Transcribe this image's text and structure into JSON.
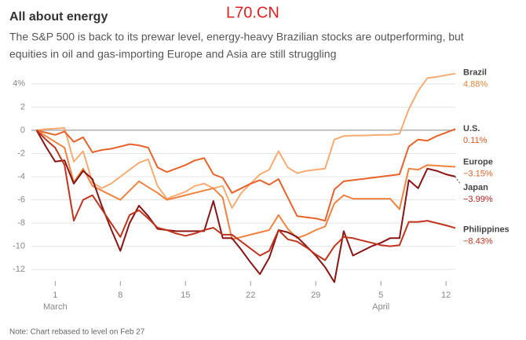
{
  "chart_data": {
    "type": "line",
    "title": "All about energy",
    "watermark": "L70.CN",
    "subtitle": [
      "The S&P 500 is back to its prewar level, energy-heavy Brazilian stocks are outperforming, but",
      "equities in oil and gas-importing Europe and Asia are still struggling"
    ],
    "note": "Note: Chart rebased to level on Feb 27",
    "x": [
      -1,
      0,
      1,
      2,
      3,
      4,
      5,
      6,
      7,
      8,
      9,
      10,
      11,
      12,
      13,
      14,
      15,
      16,
      17,
      18,
      19,
      20,
      21,
      22,
      23,
      24,
      25,
      26,
      27,
      28,
      29,
      30,
      31,
      32,
      33,
      34,
      35,
      36,
      37,
      38,
      39,
      40,
      41,
      42,
      43,
      44
    ],
    "xlim": [
      -2.4,
      44
    ],
    "xticks": [
      1,
      8,
      15,
      22,
      29,
      {
        "value": 36,
        "label": "5"
      },
      {
        "value": 43,
        "label": "12"
      }
    ],
    "months": [
      {
        "value": 1,
        "label": "March"
      },
      {
        "value": 36,
        "label": "April"
      }
    ],
    "ylim": [
      -12.8,
      4.8
    ],
    "yticks": [
      {
        "value": 4,
        "label": "4%"
      },
      2,
      0,
      -2,
      -4,
      -6,
      -8,
      -10,
      -12
    ],
    "grid": true,
    "series": [
      {
        "name": "Brazil",
        "color": "#f7ab72",
        "label_color": "#e8843a",
        "end_label": "4.88%",
        "values": [
          0,
          0.1,
          0.15,
          0.2,
          -2.7,
          -1.8,
          -4.5,
          -5.0,
          -4.6,
          -4.0,
          -3.4,
          -2.8,
          -2.5,
          -4.8,
          -5.9,
          -5.6,
          -5.3,
          -4.8,
          -4.6,
          -5.0,
          -4.8,
          -6.7,
          -5.4,
          -4.6,
          -3.8,
          -3.4,
          -1.8,
          -3.2,
          -3.7,
          -3.5,
          -3.4,
          -3.3,
          -0.8,
          -0.5,
          -0.45,
          -0.45,
          -0.42,
          -0.4,
          -0.4,
          -0.3,
          1.8,
          3.4,
          4.5,
          4.6,
          4.75,
          4.88
        ]
      },
      {
        "name": "U.S.",
        "color": "#e8622a",
        "label_color": "#e05a24",
        "end_label": "0.11%",
        "values": [
          0,
          -0.2,
          -0.4,
          -0.1,
          -1.0,
          -0.6,
          -1.9,
          -1.7,
          -1.6,
          -1.4,
          -1.2,
          -1.3,
          -1.5,
          -3.2,
          -3.6,
          -3.3,
          -3.0,
          -2.6,
          -2.4,
          -3.8,
          -4.1,
          -5.4,
          -5.0,
          -4.6,
          -4.3,
          -4.7,
          -4.2,
          -5.8,
          -7.4,
          -7.5,
          -7.6,
          -7.8,
          -5.1,
          -4.4,
          -4.3,
          -4.2,
          -4.1,
          -4.0,
          -3.9,
          -3.8,
          -1.4,
          -0.8,
          -0.9,
          -0.5,
          -0.2,
          0.11
        ]
      },
      {
        "name": "Europe",
        "color": "#f0823e",
        "label_color": "#e0612a",
        "end_label": "−3.15%",
        "values": [
          0,
          -0.5,
          -1.0,
          -1.5,
          -4.5,
          -3.3,
          -4.8,
          -5.2,
          -5.6,
          -6.0,
          -5.2,
          -4.4,
          -4.9,
          -5.4,
          -6.0,
          -5.8,
          -5.6,
          -5.4,
          -5.2,
          -5.0,
          -5.8,
          -9.4,
          -9.2,
          -9.0,
          -8.8,
          -8.6,
          -7.3,
          -8.5,
          -9.3,
          -9.0,
          -8.6,
          -8.3,
          -6.3,
          -5.6,
          -5.9,
          -5.9,
          -5.9,
          -5.9,
          -5.9,
          -6.8,
          -3.3,
          -3.4,
          -3.0,
          -3.05,
          -3.1,
          -3.15
        ]
      },
      {
        "name": "Japan",
        "color": "#8a1414",
        "label_color": "#b01c1c",
        "end_label": "−3.99%",
        "values": [
          0,
          -1.4,
          -2.7,
          -2.6,
          -4.6,
          -3.5,
          -4.2,
          -6.5,
          -8.5,
          -10.4,
          -8.0,
          -6.5,
          -7.4,
          -8.5,
          -8.6,
          -8.7,
          -8.7,
          -8.7,
          -8.7,
          -6.1,
          -9.3,
          -9.3,
          -10.3,
          -11.4,
          -12.4,
          -11.0,
          -8.6,
          -8.8,
          -9.2,
          -10.0,
          -10.8,
          -11.8,
          -13.1,
          -8.7,
          -10.8,
          -10.4,
          -10.0,
          -9.7,
          -9.3,
          -9.3,
          -4.3,
          -5.0,
          -3.3,
          -3.5,
          -3.8,
          -3.99
        ]
      },
      {
        "name": "Philippines",
        "color": "#c0341e",
        "label_color": "#c0341e",
        "end_label": "−8.43%",
        "values": [
          0,
          -0.8,
          -1.5,
          -3.0,
          -7.8,
          -6.0,
          -5.6,
          -6.8,
          -8.0,
          -9.2,
          -7.3,
          -6.9,
          -7.6,
          -8.4,
          -8.6,
          -8.9,
          -9.1,
          -8.9,
          -8.6,
          -8.4,
          -9.0,
          -9.0,
          -9.6,
          -10.2,
          -10.8,
          -10.4,
          -8.6,
          -9.4,
          -9.6,
          -10.1,
          -10.7,
          -11.2,
          -10.0,
          -9.2,
          -9.3,
          -9.5,
          -9.7,
          -9.9,
          -10.0,
          -9.9,
          -7.9,
          -7.9,
          -7.8,
          -8.0,
          -8.2,
          -8.43
        ]
      }
    ]
  }
}
